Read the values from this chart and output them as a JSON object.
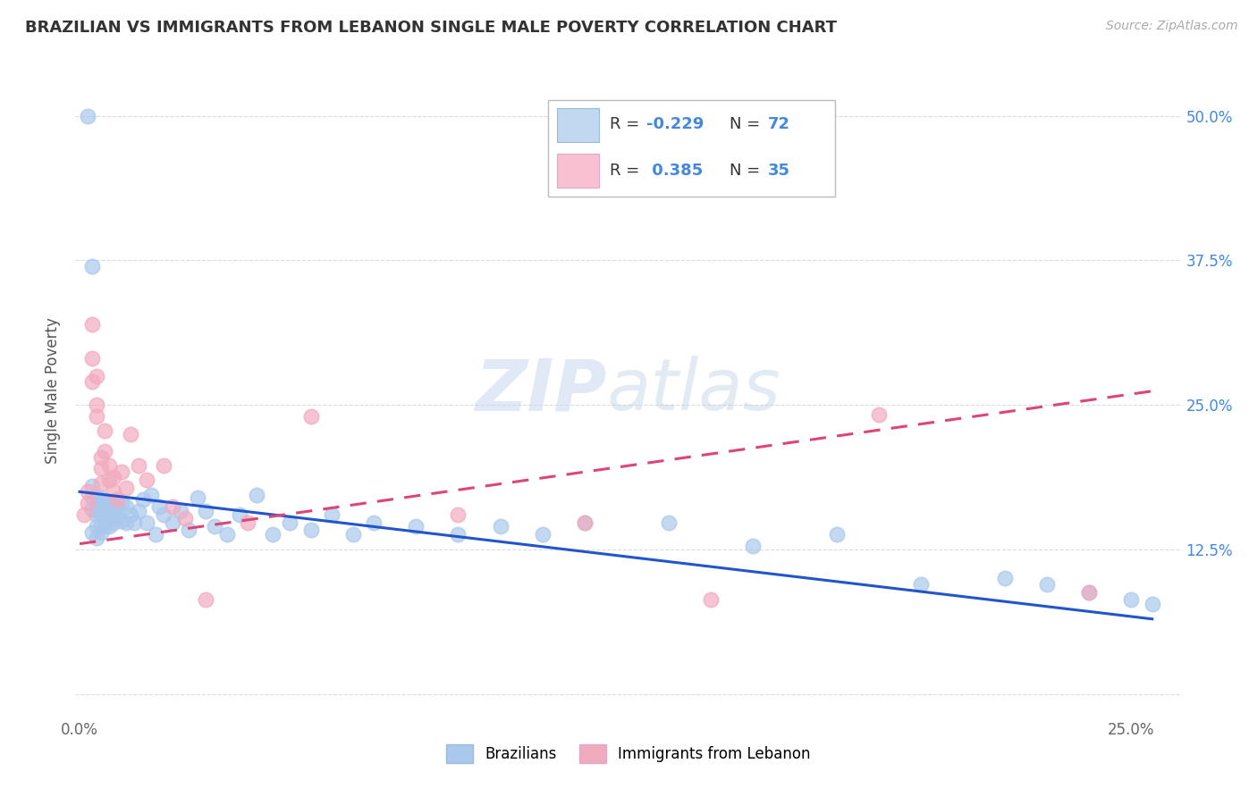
{
  "title": "BRAZILIAN VS IMMIGRANTS FROM LEBANON SINGLE MALE POVERTY CORRELATION CHART",
  "source": "Source: ZipAtlas.com",
  "ylabel_label": "Single Male Poverty",
  "y_ticks": [
    0.0,
    0.125,
    0.25,
    0.375,
    0.5
  ],
  "y_tick_labels": [
    "",
    "12.5%",
    "25.0%",
    "37.5%",
    "50.0%"
  ],
  "xlim": [
    -0.001,
    0.262
  ],
  "ylim": [
    -0.02,
    0.545
  ],
  "r_brazilian": -0.229,
  "n_brazilian": 72,
  "r_lebanon": 0.385,
  "n_lebanon": 35,
  "blue_color": "#aac8ec",
  "pink_color": "#f2aabe",
  "blue_line_color": "#2255cc",
  "pink_line_color": "#dd4477",
  "legend_box_blue": "#c0d8f0",
  "legend_box_pink": "#f8c0d0",
  "watermark_zip": "ZIP",
  "watermark_atlas": "atlas",
  "background_color": "#ffffff",
  "grid_color": "#cccccc",
  "title_color": "#333333",
  "right_tick_color": "#4488dd",
  "source_color": "#aaaaaa",
  "brazilians_x": [
    0.002,
    0.003,
    0.003,
    0.003,
    0.003,
    0.004,
    0.004,
    0.004,
    0.004,
    0.004,
    0.005,
    0.005,
    0.005,
    0.005,
    0.005,
    0.005,
    0.006,
    0.006,
    0.006,
    0.006,
    0.007,
    0.007,
    0.007,
    0.007,
    0.008,
    0.008,
    0.008,
    0.009,
    0.009,
    0.01,
    0.01,
    0.011,
    0.011,
    0.012,
    0.013,
    0.014,
    0.015,
    0.016,
    0.017,
    0.018,
    0.019,
    0.02,
    0.022,
    0.024,
    0.026,
    0.028,
    0.03,
    0.032,
    0.035,
    0.038,
    0.042,
    0.046,
    0.05,
    0.055,
    0.06,
    0.065,
    0.07,
    0.08,
    0.09,
    0.1,
    0.11,
    0.12,
    0.14,
    0.16,
    0.18,
    0.2,
    0.22,
    0.23,
    0.24,
    0.25,
    0.255,
    0.003
  ],
  "brazilians_y": [
    0.5,
    0.18,
    0.17,
    0.16,
    0.14,
    0.17,
    0.16,
    0.155,
    0.145,
    0.135,
    0.17,
    0.165,
    0.16,
    0.155,
    0.145,
    0.14,
    0.165,
    0.16,
    0.155,
    0.145,
    0.165,
    0.158,
    0.152,
    0.145,
    0.162,
    0.155,
    0.148,
    0.162,
    0.152,
    0.165,
    0.15,
    0.162,
    0.148,
    0.155,
    0.148,
    0.158,
    0.168,
    0.148,
    0.172,
    0.138,
    0.162,
    0.155,
    0.148,
    0.158,
    0.142,
    0.17,
    0.158,
    0.145,
    0.138,
    0.155,
    0.172,
    0.138,
    0.148,
    0.142,
    0.155,
    0.138,
    0.148,
    0.145,
    0.138,
    0.145,
    0.138,
    0.148,
    0.148,
    0.128,
    0.138,
    0.095,
    0.1,
    0.095,
    0.088,
    0.082,
    0.078,
    0.37
  ],
  "lebanon_x": [
    0.001,
    0.002,
    0.002,
    0.003,
    0.003,
    0.003,
    0.004,
    0.004,
    0.004,
    0.005,
    0.005,
    0.005,
    0.006,
    0.006,
    0.007,
    0.007,
    0.008,
    0.008,
    0.009,
    0.01,
    0.011,
    0.012,
    0.014,
    0.016,
    0.02,
    0.022,
    0.025,
    0.03,
    0.04,
    0.055,
    0.09,
    0.12,
    0.15,
    0.19,
    0.24
  ],
  "lebanon_y": [
    0.155,
    0.175,
    0.165,
    0.32,
    0.29,
    0.27,
    0.275,
    0.25,
    0.24,
    0.205,
    0.195,
    0.182,
    0.228,
    0.21,
    0.198,
    0.185,
    0.188,
    0.175,
    0.168,
    0.192,
    0.178,
    0.225,
    0.198,
    0.185,
    0.198,
    0.162,
    0.152,
    0.082,
    0.148,
    0.24,
    0.155,
    0.148,
    0.082,
    0.242,
    0.088
  ],
  "blue_trend_x0": 0.0,
  "blue_trend_y0": 0.175,
  "blue_trend_x1": 0.255,
  "blue_trend_y1": 0.065,
  "pink_trend_x0": 0.0,
  "pink_trend_y0": 0.13,
  "pink_trend_x1": 0.255,
  "pink_trend_y1": 0.262
}
